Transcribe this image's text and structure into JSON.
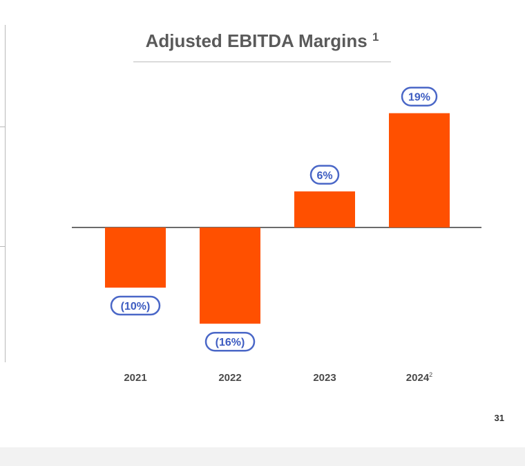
{
  "chart_data": {
    "type": "bar",
    "title": "Adjusted EBITDA Margins",
    "title_footnote": "1",
    "categories": [
      "2021",
      "2022",
      "2023",
      "2024"
    ],
    "category_footnotes": [
      "",
      "",
      "",
      "2"
    ],
    "values": [
      -10,
      -16,
      6,
      19
    ],
    "data_labels": [
      "(10%)",
      "(16%)",
      "6%",
      "19%"
    ],
    "xlabel": "",
    "ylabel": "",
    "grid": false,
    "legend": "none"
  },
  "colors": {
    "bar": "#ff5000",
    "label_border": "#4a67c7",
    "label_text": "#3d5cc1",
    "axis": "#3a3a3a",
    "tick_text": "#4a4a4a"
  },
  "page": {
    "number": "31"
  }
}
